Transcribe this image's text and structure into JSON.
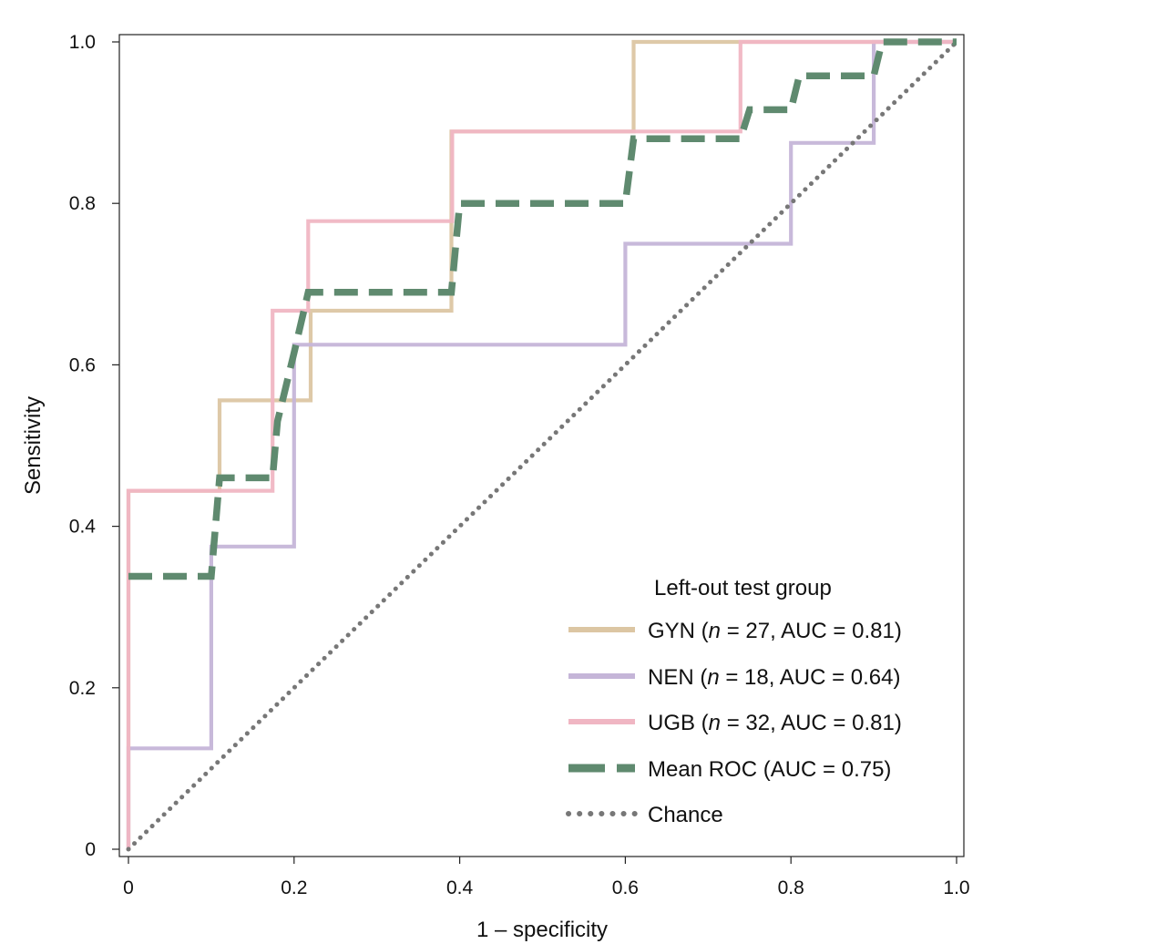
{
  "chart_data": {
    "type": "line",
    "title": "",
    "xlabel": "1 – specificity",
    "ylabel": "Sensitivity",
    "xlim": [
      0,
      1
    ],
    "ylim": [
      0,
      1
    ],
    "xticks": [
      0,
      0.2,
      0.4,
      0.6,
      0.8,
      1.0
    ],
    "xtick_labels": [
      "0",
      "0.2",
      "0.4",
      "0.6",
      "0.8",
      "1.0"
    ],
    "yticks": [
      0,
      0.2,
      0.4,
      0.6,
      0.8,
      1.0
    ],
    "ytick_labels": [
      "0",
      "0.2",
      "0.4",
      "0.6",
      "0.8",
      "1.0"
    ],
    "grid": false,
    "legend": {
      "title": "Left-out test group",
      "position": "bottom-right"
    },
    "series": [
      {
        "name": "GYN",
        "legend_parts": [
          "GYN (",
          "n",
          " = 27, AUC = 0.81)"
        ],
        "color": "#dcc6a3",
        "style": "solid",
        "x": [
          0,
          0,
          0.11,
          0.11,
          0.22,
          0.22,
          0.39,
          0.39,
          0.61,
          0.61,
          1.0
        ],
        "y": [
          0,
          0.444,
          0.444,
          0.556,
          0.556,
          0.667,
          0.667,
          0.889,
          0.889,
          1.0,
          1.0
        ]
      },
      {
        "name": "NEN",
        "legend_parts": [
          "NEN (",
          "n",
          " = 18, AUC = 0.64)"
        ],
        "color": "#c5b5d8",
        "style": "solid",
        "x": [
          0,
          0,
          0.1,
          0.1,
          0.2,
          0.2,
          0.6,
          0.6,
          0.8,
          0.8,
          0.9,
          0.9,
          1.0
        ],
        "y": [
          0,
          0.125,
          0.125,
          0.375,
          0.375,
          0.625,
          0.625,
          0.75,
          0.75,
          0.875,
          0.875,
          1.0,
          1.0
        ]
      },
      {
        "name": "UGB",
        "legend_parts": [
          "UGB (",
          "n",
          " = 32, AUC = 0.81)"
        ],
        "color": "#f0b6c3",
        "style": "solid",
        "x": [
          0,
          0,
          0.174,
          0.174,
          0.217,
          0.217,
          0.391,
          0.391,
          0.739,
          0.739,
          1.0
        ],
        "y": [
          0,
          0.444,
          0.444,
          0.667,
          0.667,
          0.778,
          0.778,
          0.889,
          0.889,
          1.0,
          1.0
        ]
      },
      {
        "name": "Mean ROC",
        "legend_parts": [
          "Mean ROC (AUC = 0.75)"
        ],
        "color": "#5f8a6f",
        "style": "dashed",
        "x": [
          0,
          0.1,
          0.11,
          0.174,
          0.18,
          0.2,
          0.217,
          0.39,
          0.4,
          0.6,
          0.61,
          0.739,
          0.75,
          0.8,
          0.81,
          0.9,
          0.91,
          1.0
        ],
        "y": [
          0.338,
          0.338,
          0.46,
          0.46,
          0.53,
          0.615,
          0.69,
          0.69,
          0.8,
          0.8,
          0.88,
          0.88,
          0.916,
          0.916,
          0.958,
          0.958,
          1.0,
          1.0
        ]
      },
      {
        "name": "Chance",
        "legend_parts": [
          "Chance"
        ],
        "color": "#777777",
        "style": "dotted",
        "x": [
          0,
          1
        ],
        "y": [
          0,
          1
        ]
      }
    ]
  }
}
